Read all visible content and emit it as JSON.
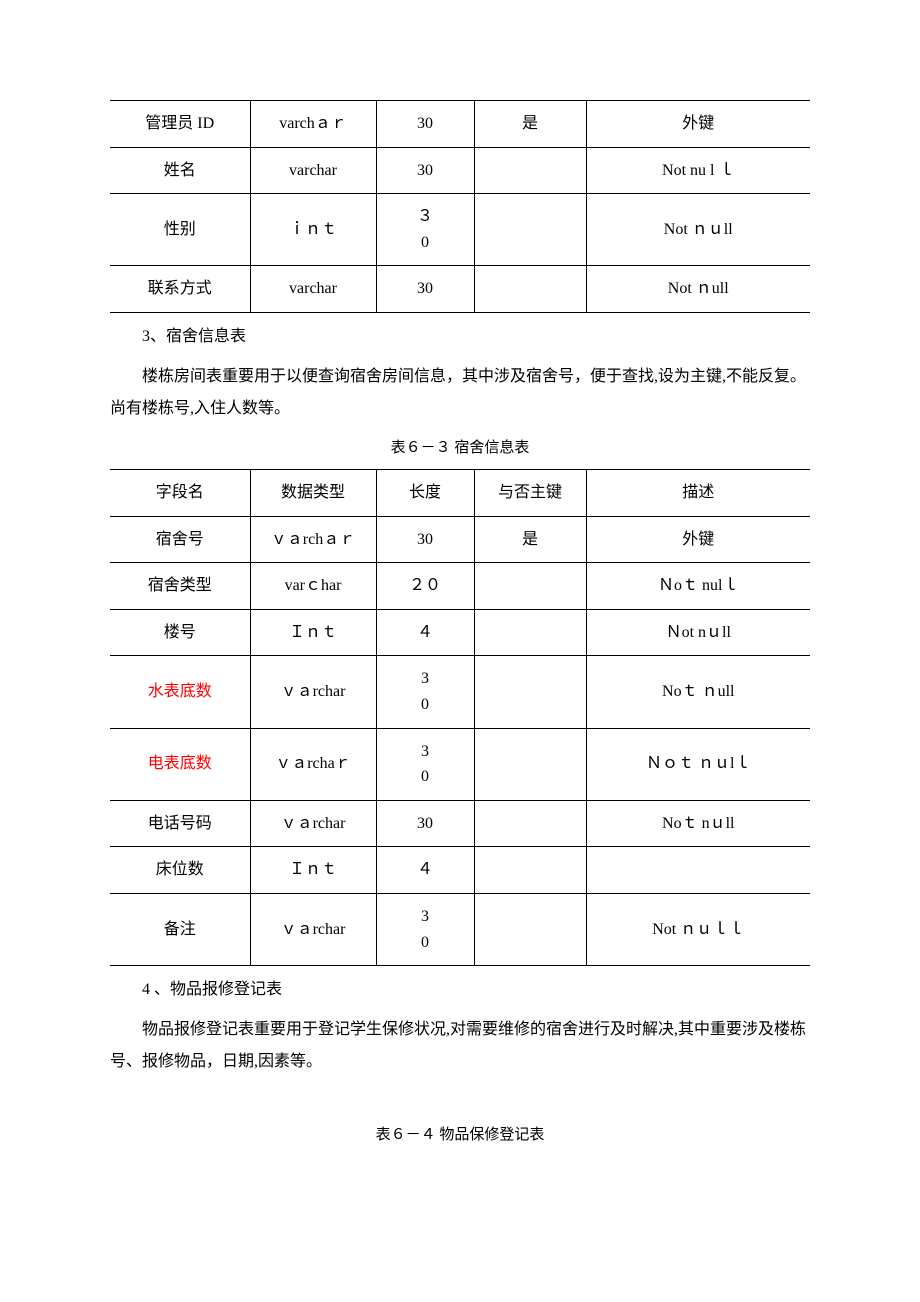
{
  "table1": {
    "rows": [
      {
        "c1": "管理员 ID",
        "c2": "varchａｒ",
        "c3": "30",
        "c4": "是",
        "c5": "外键",
        "red": false
      },
      {
        "c1": "姓名",
        "c2": "varchar",
        "c3": "30",
        "c4": "",
        "c5": "Not  nu l ｌ",
        "red": false
      },
      {
        "c1": "性别",
        "c2": "ｉｎｔ",
        "c3": "３0",
        "c4": "",
        "c5": "Not ｎｕll",
        "red": false
      },
      {
        "c1": "联系方式",
        "c2": "varchar",
        "c3": "30",
        "c4": "",
        "c5": "Not ｎull",
        "red": false
      }
    ]
  },
  "sec3_title": "3、宿舍信息表",
  "sec3_para": "楼栋房间表重要用于以便查询宿舍房间信息，其中涉及宿舍号，便于查找,设为主键,不能反复。尚有楼栋号,入住人数等。",
  "table2_caption": "表６－３ 宿舍信息表",
  "table2": {
    "header": {
      "c1": "字段名",
      "c2": "数据类型",
      "c3": "长度",
      "c4": "与否主键",
      "c5": "描述"
    },
    "rows": [
      {
        "c1": "宿舍号",
        "c2": "ｖａrchａｒ",
        "c3": "30",
        "c4": "是",
        "c5": "外键",
        "red": false
      },
      {
        "c1": "宿舍类型",
        "c2": "varｃhar",
        "c3": "２０",
        "c4": "",
        "c5": "Ｎoｔ  nulｌ",
        "red": false
      },
      {
        "c1": "楼号",
        "c2": "Ｉｎｔ",
        "c3": "４",
        "c4": "",
        "c5": "Ｎot nｕll",
        "red": false
      },
      {
        "c1": "水表底数",
        "c2": "ｖａrchar",
        "c3": "30",
        "c4": "",
        "c5": "Noｔ  ｎull",
        "red": true
      },
      {
        "c1": "电表底数",
        "c2": "ｖａrchaｒ",
        "c3": "30",
        "c4": "",
        "c5": "Ｎｏｔ   ｎｕlｌ",
        "red": true
      },
      {
        "c1": "电话号码",
        "c2": "ｖａrchar",
        "c3": "30",
        "c4": "",
        "c5": "Noｔ nｕll",
        "red": false
      },
      {
        "c1": "床位数",
        "c2": "Ｉｎｔ",
        "c3": "４",
        "c4": "",
        "c5": "",
        "red": false
      },
      {
        "c1": "备注",
        "c2": "ｖａrchar",
        "c3": "30",
        "c4": "",
        "c5": "Not ｎｕｌｌ",
        "red": false
      }
    ]
  },
  "sec4_title": "4 、物品报修登记表",
  "sec4_para": "物品报修登记表重要用于登记学生保修状况,对需要维修的宿舍进行及时解决,其中重要涉及楼栋号、报修物品，日期,因素等。",
  "table3_caption": "表６－４  物品保修登记表"
}
